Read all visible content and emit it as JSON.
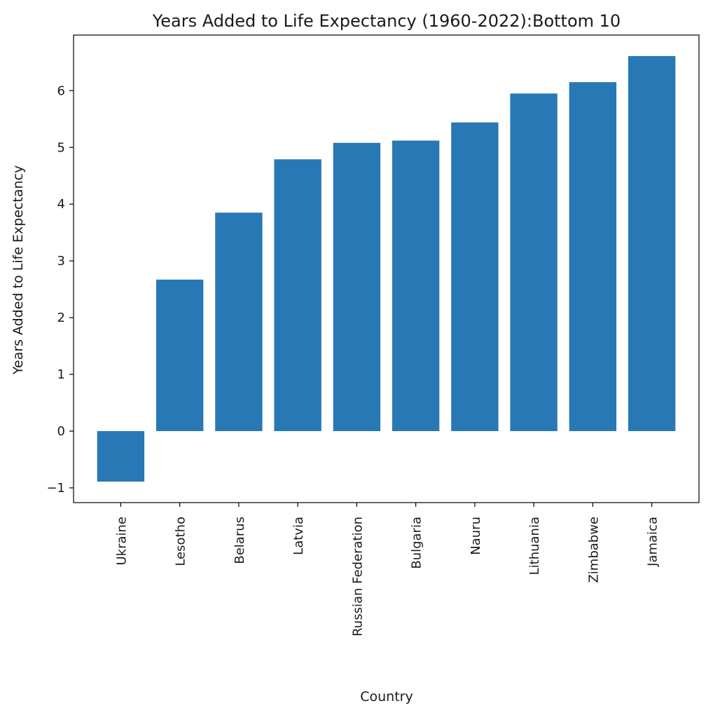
{
  "chart_data": {
    "type": "bar",
    "title": "Years Added to Life Expectancy (1960-2022):Bottom 10",
    "xlabel": "Country",
    "ylabel": "Years Added to Life Expectancy",
    "categories": [
      "Ukraine",
      "Lesotho",
      "Belarus",
      "Latvia",
      "Russian Federation",
      "Bulgaria",
      "Nauru",
      "Lithuania",
      "Zimbabwe",
      "Jamaica"
    ],
    "values": [
      -0.89,
      2.67,
      3.85,
      4.79,
      5.08,
      5.12,
      5.44,
      5.95,
      6.15,
      6.61
    ],
    "yticks": [
      -1,
      0,
      1,
      2,
      3,
      4,
      5,
      6
    ],
    "ylim": [
      -1.26,
      6.98
    ],
    "bar_color": "#2878b5",
    "grid": false,
    "legend": "none"
  }
}
